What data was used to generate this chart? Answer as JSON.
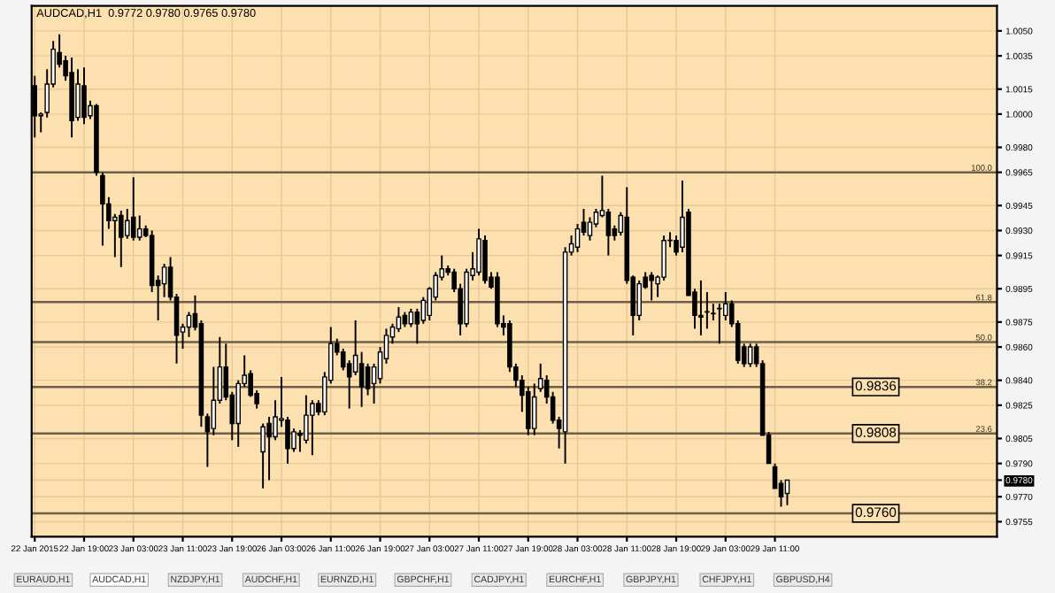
{
  "chart_data": {
    "type": "candlestick",
    "title": "AUDCAD,H1  0.9772 0.9780 0.9765 0.9780",
    "categories": [
      "22 Jan 2015",
      null,
      null,
      null,
      null,
      null,
      null,
      null,
      "22 Jan 19:00",
      null,
      null,
      null,
      null,
      null,
      null,
      null,
      "23 Jan 03:00",
      null,
      null,
      null,
      null,
      null,
      null,
      null,
      "23 Jan 11:00",
      null,
      null,
      null,
      null,
      null,
      null,
      null,
      "23 Jan 19:00",
      null,
      null,
      null,
      null,
      null,
      null,
      null,
      "26 Jan 03:00",
      null,
      null,
      null,
      null,
      null,
      null,
      null,
      "26 Jan 11:00",
      null,
      null,
      null,
      null,
      null,
      null,
      null,
      "26 Jan 19:00",
      null,
      null,
      null,
      null,
      null,
      null,
      null,
      "27 Jan 03:00",
      null,
      null,
      null,
      null,
      null,
      null,
      null,
      "27 Jan 11:00",
      null,
      null,
      null,
      null,
      null,
      null,
      null,
      "27 Jan 19:00",
      null,
      null,
      null,
      null,
      null,
      null,
      null,
      "28 Jan 03:00",
      null,
      null,
      null,
      null,
      null,
      null,
      null,
      "28 Jan 11:00",
      null,
      null,
      null,
      null,
      null,
      null,
      null,
      "28 Jan 19:00",
      null,
      null,
      null,
      null,
      null,
      null,
      null,
      "29 Jan 03:00",
      null,
      null,
      null,
      null,
      null,
      null,
      null,
      "29 Jan 11:00",
      null,
      null,
      null,
      null,
      null,
      null,
      null,
      null,
      null,
      null,
      null,
      null,
      null,
      null,
      null,
      null,
      null,
      null,
      null,
      null,
      null,
      null,
      null,
      null,
      null,
      null,
      null,
      null,
      null,
      null,
      null,
      null,
      null,
      null,
      null
    ],
    "ohlc": [
      [
        1.0017,
        1.0023,
        0.9986,
        0.9999
      ],
      [
        0.9999,
        1.0001,
        0.9989,
        1.0
      ],
      [
        1.0001,
        1.0027,
        0.9998,
        1.0018
      ],
      [
        1.0018,
        1.0044,
        1.0016,
        1.0039
      ],
      [
        1.0037,
        1.0048,
        1.0028,
        1.003
      ],
      [
        1.0032,
        1.0035,
        1.002,
        1.0023
      ],
      [
        1.0025,
        1.0034,
        0.9986,
        0.9996
      ],
      [
        0.9998,
        1.0027,
        0.9996,
        1.0018
      ],
      [
        1.0017,
        1.0028,
        0.9994,
        0.9998
      ],
      [
        0.9999,
        1.0008,
        0.9997,
        1.0005
      ],
      [
        1.0005,
        1.0006,
        0.9963,
        0.9965
      ],
      [
        0.9963,
        0.9965,
        0.9921,
        0.9946
      ],
      [
        0.9946,
        0.995,
        0.9931,
        0.9936
      ],
      [
        0.9936,
        0.994,
        0.9914,
        0.9938
      ],
      [
        0.9939,
        0.9942,
        0.9908,
        0.9926
      ],
      [
        0.9927,
        0.9943,
        0.9925,
        0.9936
      ],
      [
        0.9938,
        0.9962,
        0.9924,
        0.9926
      ],
      [
        0.9926,
        0.9939,
        0.9924,
        0.9931
      ],
      [
        0.9931,
        0.9933,
        0.9926,
        0.9927
      ],
      [
        0.9927,
        0.993,
        0.9893,
        0.9897
      ],
      [
        0.99,
        0.9903,
        0.9876,
        0.9897
      ],
      [
        0.9898,
        0.991,
        0.989,
        0.9908
      ],
      [
        0.9908,
        0.9914,
        0.9888,
        0.989
      ],
      [
        0.989,
        0.9892,
        0.985,
        0.9867
      ],
      [
        0.9869,
        0.9874,
        0.9859,
        0.9872
      ],
      [
        0.9872,
        0.9881,
        0.9866,
        0.9879
      ],
      [
        0.988,
        0.9891,
        0.987,
        0.9872
      ],
      [
        0.9874,
        0.9876,
        0.9812,
        0.9819
      ],
      [
        0.9818,
        0.982,
        0.9788,
        0.9809
      ],
      [
        0.9811,
        0.9848,
        0.9807,
        0.9828
      ],
      [
        0.9828,
        0.9866,
        0.9826,
        0.9848
      ],
      [
        0.9848,
        0.9862,
        0.9828,
        0.983
      ],
      [
        0.9831,
        0.9833,
        0.9804,
        0.9814
      ],
      [
        0.9814,
        0.984,
        0.98,
        0.9838
      ],
      [
        0.9838,
        0.9855,
        0.9836,
        0.9843
      ],
      [
        0.9844,
        0.9846,
        0.983,
        0.9831
      ],
      [
        0.9832,
        0.9834,
        0.9823,
        0.9826
      ],
      [
        0.9797,
        0.9814,
        0.9775,
        0.9812
      ],
      [
        0.9814,
        0.9818,
        0.978,
        0.9806
      ],
      [
        0.9806,
        0.9828,
        0.9804,
        0.9818
      ],
      [
        0.9816,
        0.9842,
        0.9812,
        0.9817
      ],
      [
        0.9816,
        0.9818,
        0.979,
        0.9799
      ],
      [
        0.9799,
        0.9811,
        0.9797,
        0.9809
      ],
      [
        0.9808,
        0.981,
        0.9797,
        0.9807
      ],
      [
        0.9804,
        0.9831,
        0.9802,
        0.9819
      ],
      [
        0.9819,
        0.9828,
        0.9795,
        0.9826
      ],
      [
        0.9826,
        0.9828,
        0.9819,
        0.9821
      ],
      [
        0.9821,
        0.9845,
        0.9819,
        0.9842
      ],
      [
        0.984,
        0.9872,
        0.9838,
        0.9862
      ],
      [
        0.9862,
        0.9865,
        0.9855,
        0.9857
      ],
      [
        0.9857,
        0.9859,
        0.9846,
        0.9848
      ],
      [
        0.985,
        0.9852,
        0.9823,
        0.9842
      ],
      [
        0.9845,
        0.9876,
        0.9843,
        0.9855
      ],
      [
        0.985,
        0.9857,
        0.9824,
        0.9836
      ],
      [
        0.9848,
        0.985,
        0.9831,
        0.9835
      ],
      [
        0.9838,
        0.985,
        0.9826,
        0.9848
      ],
      [
        0.9841,
        0.986,
        0.9838,
        0.9857
      ],
      [
        0.9853,
        0.9871,
        0.985,
        0.9867
      ],
      [
        0.9866,
        0.9874,
        0.9862,
        0.9872
      ],
      [
        0.9871,
        0.9884,
        0.9869,
        0.9878
      ],
      [
        0.9879,
        0.9881,
        0.9872,
        0.9874
      ],
      [
        0.9874,
        0.9883,
        0.9872,
        0.9881
      ],
      [
        0.9881,
        0.9883,
        0.9862,
        0.9874
      ],
      [
        0.9876,
        0.989,
        0.9874,
        0.9888
      ],
      [
        0.9879,
        0.9896,
        0.9876,
        0.9895
      ],
      [
        0.989,
        0.9905,
        0.9888,
        0.9903
      ],
      [
        0.9902,
        0.9915,
        0.99,
        0.9907
      ],
      [
        0.9907,
        0.9909,
        0.9903,
        0.9905
      ],
      [
        0.9905,
        0.9907,
        0.9893,
        0.9895
      ],
      [
        0.9895,
        0.9898,
        0.9867,
        0.9874
      ],
      [
        0.9874,
        0.9907,
        0.9872,
        0.9905
      ],
      [
        0.9903,
        0.9917,
        0.99,
        0.9907
      ],
      [
        0.9905,
        0.9931,
        0.9903,
        0.9925
      ],
      [
        0.9924,
        0.9927,
        0.9898,
        0.99
      ],
      [
        0.9902,
        0.9905,
        0.9895,
        0.9896
      ],
      [
        0.9902,
        0.9905,
        0.9872,
        0.9874
      ],
      [
        0.9874,
        0.9879,
        0.9867,
        0.9872
      ],
      [
        0.9874,
        0.9876,
        0.9845,
        0.9848
      ],
      [
        0.9848,
        0.985,
        0.9836,
        0.984
      ],
      [
        0.984,
        0.9843,
        0.9821,
        0.9831
      ],
      [
        0.9833,
        0.9836,
        0.9807,
        0.9811
      ],
      [
        0.9811,
        0.9838,
        0.9807,
        0.983
      ],
      [
        0.9835,
        0.985,
        0.9833,
        0.9841
      ],
      [
        0.984,
        0.9843,
        0.9826,
        0.983
      ],
      [
        0.983,
        0.9833,
        0.9814,
        0.9816
      ],
      [
        0.9816,
        0.9818,
        0.9799,
        0.9811
      ],
      [
        0.9809,
        0.992,
        0.979,
        0.9917
      ],
      [
        0.9917,
        0.9927,
        0.9915,
        0.9922
      ],
      [
        0.992,
        0.9934,
        0.9917,
        0.9931
      ],
      [
        0.9935,
        0.9943,
        0.9927,
        0.9929
      ],
      [
        0.9927,
        0.9938,
        0.9924,
        0.9935
      ],
      [
        0.9934,
        0.9943,
        0.9932,
        0.9941
      ],
      [
        0.9939,
        0.9963,
        0.9938,
        0.9942
      ],
      [
        0.9941,
        0.9943,
        0.9915,
        0.9927
      ],
      [
        0.9931,
        0.9933,
        0.9924,
        0.9927
      ],
      [
        0.9929,
        0.9941,
        0.9927,
        0.9939
      ],
      [
        0.9938,
        0.9956,
        0.9898,
        0.99
      ],
      [
        0.9902,
        0.9903,
        0.9867,
        0.9879
      ],
      [
        0.9879,
        0.99,
        0.9876,
        0.9898
      ],
      [
        0.9902,
        0.9905,
        0.9895,
        0.9896
      ],
      [
        0.9903,
        0.9905,
        0.9888,
        0.99
      ],
      [
        0.9898,
        0.9903,
        0.989,
        0.9902
      ],
      [
        0.9902,
        0.9927,
        0.99,
        0.9924
      ],
      [
        0.9924,
        0.9929,
        0.992,
        0.9924
      ],
      [
        0.9924,
        0.9927,
        0.9915,
        0.9917
      ],
      [
        0.992,
        0.996,
        0.9917,
        0.9938
      ],
      [
        0.9941,
        0.9943,
        0.9891,
        0.9891
      ],
      [
        0.9893,
        0.9895,
        0.9871,
        0.9879
      ],
      [
        0.9879,
        0.99,
        0.9867,
        0.9878
      ],
      [
        0.9881,
        0.9893,
        0.9871,
        0.9881
      ],
      [
        0.988,
        0.9886,
        0.9876,
        0.988
      ],
      [
        0.9883,
        0.9886,
        0.9862,
        0.9883
      ],
      [
        0.9879,
        0.9893,
        0.9876,
        0.9886
      ],
      [
        0.9886,
        0.9888,
        0.9872,
        0.9874
      ],
      [
        0.9874,
        0.9876,
        0.985,
        0.9852
      ],
      [
        0.986,
        0.9862,
        0.9848,
        0.985
      ],
      [
        0.985,
        0.9862,
        0.9848,
        0.986
      ],
      [
        0.986,
        0.9862,
        0.9848,
        0.985
      ],
      [
        0.985,
        0.9852,
        0.9807,
        0.9807
      ],
      [
        0.9807,
        0.9809,
        0.979,
        0.979
      ],
      [
        0.9788,
        0.979,
        0.9775,
        0.9775
      ],
      [
        0.9778,
        0.978,
        0.9764,
        0.977
      ],
      [
        0.9772,
        0.978,
        0.9765,
        0.978
      ],
      null,
      null,
      null,
      null,
      null,
      null,
      null,
      null,
      null,
      null,
      null,
      null,
      null,
      null,
      null,
      null,
      null,
      null,
      null,
      null,
      null,
      null,
      null,
      null,
      null,
      null,
      null,
      null,
      null,
      null,
      null,
      null,
      null
    ],
    "ylim": [
      0.9746,
      1.0065
    ],
    "yticks": [
      {
        "value": 1.005,
        "label": "1.0050"
      },
      {
        "value": 1.0035,
        "label": "1.0035"
      },
      {
        "value": 1.0015,
        "label": "1.0015"
      },
      {
        "value": 1.0,
        "label": "1.0000"
      },
      {
        "value": 0.998,
        "label": "0.9980"
      },
      {
        "value": 0.9965,
        "label": "0.9965"
      },
      {
        "value": 0.9945,
        "label": "0.9945"
      },
      {
        "value": 0.993,
        "label": "0.9930"
      },
      {
        "value": 0.9915,
        "label": "0.9915"
      },
      {
        "value": 0.9895,
        "label": "0.9895"
      },
      {
        "value": 0.9875,
        "label": "0.9875"
      },
      {
        "value": 0.986,
        "label": "0.9860"
      },
      {
        "value": 0.984,
        "label": "0.9840"
      },
      {
        "value": 0.9825,
        "label": "0.9825"
      },
      {
        "value": 0.9805,
        "label": "0.9805"
      },
      {
        "value": 0.979,
        "label": "0.9790"
      },
      {
        "value": 0.978,
        "label": "0.9780"
      },
      {
        "value": 0.977,
        "label": "0.9770"
      },
      {
        "value": 0.9755,
        "label": "0.9755"
      }
    ],
    "ref_lines": [
      {
        "axis": "y",
        "value": 0.9965,
        "color": "#6e6048"
      },
      {
        "axis": "y",
        "value": 0.9887,
        "color": "#6e6048"
      },
      {
        "axis": "y",
        "value": 0.9863,
        "color": "#6e6048"
      },
      {
        "axis": "y",
        "value": 0.9836,
        "color": "#6e6048"
      },
      {
        "axis": "y",
        "value": 0.9808,
        "color": "#6e6048"
      },
      {
        "axis": "y",
        "value": 0.976,
        "color": "#6e6048"
      }
    ],
    "annotations": [
      {
        "text": "100.0",
        "y": 0.9965
      },
      {
        "text": "61.8",
        "y": 0.9887
      },
      {
        "text": "50.0",
        "y": 0.9863
      },
      {
        "text": "38.2",
        "y": 0.9836
      },
      {
        "text": "23.6",
        "y": 0.9808
      },
      {
        "text": "0.9836",
        "y": 0.9836
      },
      {
        "text": "0.9808",
        "y": 0.9808
      },
      {
        "text": "0.9760",
        "y": 0.976
      },
      "EURAUD,H1",
      "AUDCAD,H1",
      "NZDJPY,H1",
      "AUDCHF,H1",
      "EURNZD,H1",
      "GBPCHF,H1",
      "CADJPY,H1",
      "EURCHF,H1",
      "GBPJPY,H1",
      "CHFJPY,H1",
      "GBPUSD,H4"
    ],
    "grid": true,
    "legend": false
  }
}
